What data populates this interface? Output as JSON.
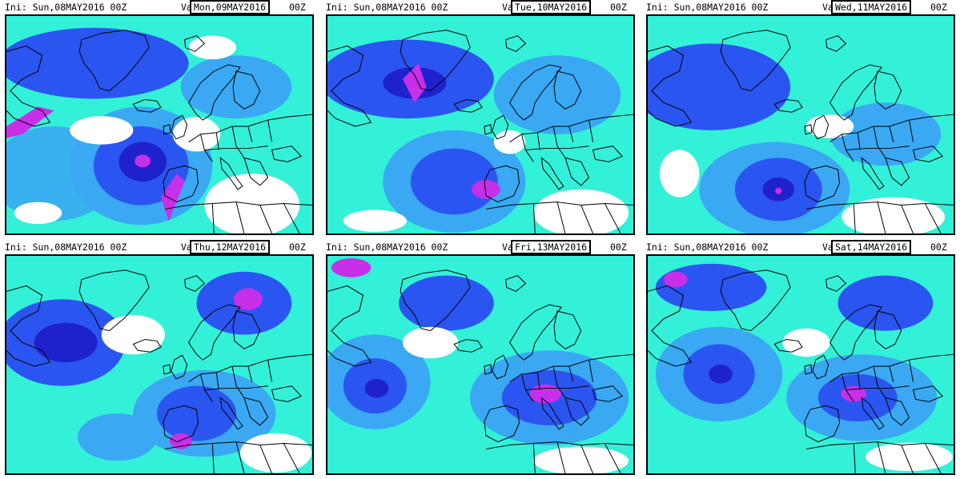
{
  "panels": [
    {
      "ini": "Ini: Sun,08MAY2016 00Z",
      "val_label": "Val:",
      "valid": "Mon,09MAY2016",
      "suffix": "00Z"
    },
    {
      "ini": "Ini: Sun,08MAY2016 00Z",
      "val_label": "Val:",
      "valid": "Tue,10MAY2016",
      "suffix": "00Z"
    },
    {
      "ini": "Ini: Sun,08MAY2016 00Z",
      "val_label": "Val:",
      "valid": "Wed,11MAY2016",
      "suffix": "00Z"
    },
    {
      "ini": "Ini: Sun,08MAY2016 00Z",
      "val_label": "Val:",
      "valid": "Thu,12MAY2016",
      "suffix": "00Z"
    },
    {
      "ini": "Ini: Sun,08MAY2016 00Z",
      "val_label": "Val:",
      "valid": "Fri,13MAY2016",
      "suffix": "00Z"
    },
    {
      "ini": "Ini: Sun,08MAY2016 00Z",
      "val_label": "Val:",
      "valid": "Sat,14MAY2016",
      "suffix": "00Z"
    }
  ],
  "colors": {
    "background": "#ffffff",
    "cyan": "#33f0d8",
    "light_blue": "#3aa8f2",
    "blue": "#2b55f0",
    "dark_blue": "#1f22cc",
    "magenta": "#c72fe8",
    "coastline": "#000000"
  }
}
